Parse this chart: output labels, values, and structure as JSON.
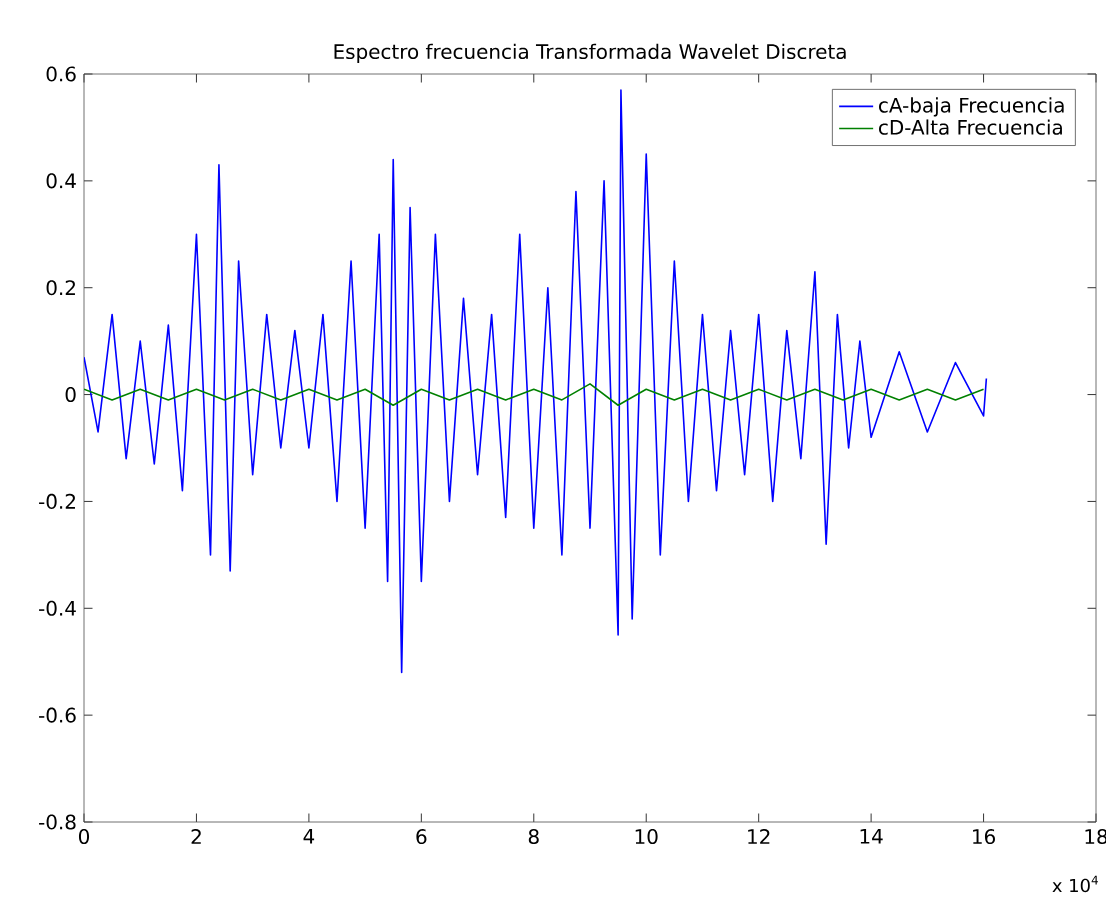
{
  "chart_data": {
    "type": "line",
    "title": "Espectro frecuencia Transformada Wavelet Discreta",
    "annotations": [
      "x 10$^{4}$"
    ],
    "xlim": [
      0,
      18
    ],
    "xticks": [
      0,
      2,
      4,
      6,
      8,
      10,
      12,
      14,
      16,
      18
    ],
    "ylim": [
      -0.8,
      0.6
    ],
    "yticks": [
      -0.8,
      -0.6,
      -0.4,
      -0.2,
      0,
      0.2,
      0.4,
      0.6
    ],
    "legend": "top right",
    "grid": false,
    "series": [
      {
        "name": "cA-baja Frecuencia",
        "color": "#0000ff",
        "x": [
          0,
          0.25,
          0.5,
          0.75,
          1.0,
          1.25,
          1.5,
          1.75,
          2.0,
          2.25,
          2.4,
          2.6,
          2.75,
          3.0,
          3.25,
          3.5,
          3.75,
          4.0,
          4.25,
          4.5,
          4.75,
          5.0,
          5.25,
          5.4,
          5.5,
          5.65,
          5.8,
          6.0,
          6.25,
          6.5,
          6.75,
          7.0,
          7.25,
          7.5,
          7.75,
          8.0,
          8.25,
          8.5,
          8.75,
          9.0,
          9.25,
          9.5,
          9.55,
          9.75,
          10.0,
          10.25,
          10.5,
          10.75,
          11.0,
          11.25,
          11.5,
          11.75,
          12.0,
          12.25,
          12.5,
          12.75,
          13.0,
          13.2,
          13.4,
          13.6,
          13.8,
          14.0,
          14.5,
          15.0,
          15.5,
          16.0,
          16.05
        ],
        "values": [
          0.07,
          -0.07,
          0.15,
          -0.12,
          0.1,
          -0.13,
          0.13,
          -0.18,
          0.3,
          -0.3,
          0.43,
          -0.33,
          0.25,
          -0.15,
          0.15,
          -0.1,
          0.12,
          -0.1,
          0.15,
          -0.2,
          0.25,
          -0.25,
          0.3,
          -0.35,
          0.44,
          -0.52,
          0.35,
          -0.35,
          0.3,
          -0.2,
          0.18,
          -0.15,
          0.15,
          -0.23,
          0.3,
          -0.25,
          0.2,
          -0.3,
          0.38,
          -0.25,
          0.4,
          -0.45,
          0.57,
          -0.42,
          0.45,
          -0.3,
          0.25,
          -0.2,
          0.15,
          -0.18,
          0.12,
          -0.15,
          0.15,
          -0.2,
          0.12,
          -0.12,
          0.23,
          -0.28,
          0.15,
          -0.1,
          0.1,
          -0.08,
          0.08,
          -0.07,
          0.06,
          -0.04,
          0.03
        ]
      },
      {
        "name": "cD-Alta Frecuencia",
        "color": "#008000",
        "x": [
          0,
          0.5,
          1.0,
          1.5,
          2.0,
          2.5,
          3.0,
          3.5,
          4.0,
          4.5,
          5.0,
          5.5,
          6.0,
          6.5,
          7.0,
          7.5,
          8.0,
          8.5,
          9.0,
          9.5,
          10.0,
          10.5,
          11.0,
          11.5,
          12.0,
          12.5,
          13.0,
          13.5,
          14.0,
          14.5,
          15.0,
          15.5,
          16.0
        ],
        "values": [
          0.01,
          -0.01,
          0.01,
          -0.01,
          0.01,
          -0.01,
          0.01,
          -0.01,
          0.01,
          -0.01,
          0.01,
          -0.02,
          0.01,
          -0.01,
          0.01,
          -0.01,
          0.01,
          -0.01,
          0.02,
          -0.02,
          0.01,
          -0.01,
          0.01,
          -0.01,
          0.01,
          -0.01,
          0.01,
          -0.01,
          0.01,
          -0.01,
          0.01,
          -0.01,
          0.01
        ]
      }
    ]
  }
}
